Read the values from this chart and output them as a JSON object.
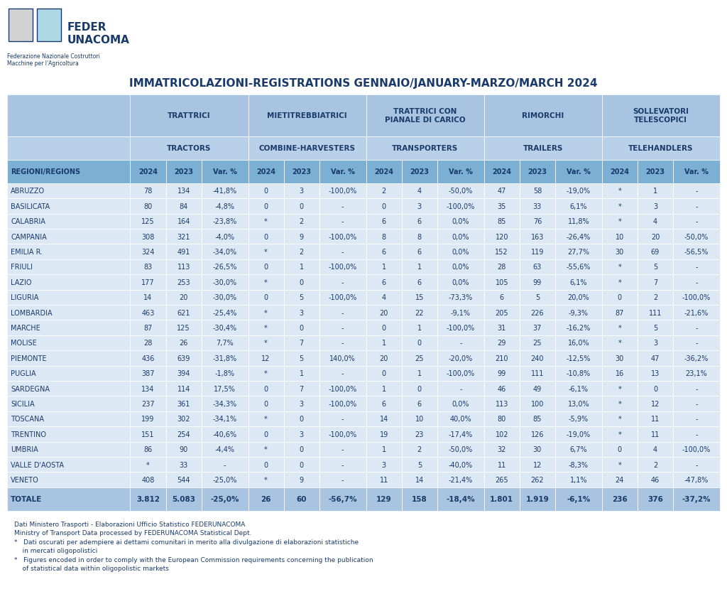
{
  "title": "IMMATRICOLAZIONI-REGISTRATIONS GENNAIO/JANUARY-MARZO/MARCH 2024",
  "header_row1": [
    "",
    "TRATTRICI",
    "",
    "",
    "MIETITREBBIATRICI",
    "",
    "",
    "TRATTRICI CON\nPIANALE DI CARICO",
    "",
    "",
    "RIMORCHI",
    "",
    "",
    "SOLLEVATORI\nTELESCOPICI",
    "",
    ""
  ],
  "header_row2": [
    "",
    "TRACTORS",
    "",
    "",
    "COMBINE-HARVESTERS",
    "",
    "",
    "TRANSPORTERS",
    "",
    "",
    "TRAILERS",
    "",
    "",
    "TELEHANDLERS",
    "",
    ""
  ],
  "col_headers": [
    "REGIONI/REGIONS",
    "2024",
    "2023",
    "Var. %",
    "2024",
    "2023",
    "Var. %",
    "2024",
    "2023",
    "Var. %",
    "2024",
    "2023",
    "Var. %",
    "2024",
    "2023",
    "Var. %"
  ],
  "rows": [
    [
      "ABRUZZO",
      "78",
      "134",
      "-41,8%",
      "0",
      "3",
      "-100,0%",
      "2",
      "4",
      "-50,0%",
      "47",
      "58",
      "-19,0%",
      "*",
      "1",
      "-"
    ],
    [
      "BASILICATA",
      "80",
      "84",
      "-4,8%",
      "0",
      "0",
      "-",
      "0",
      "3",
      "-100,0%",
      "35",
      "33",
      "6,1%",
      "*",
      "3",
      "-"
    ],
    [
      "CALABRIA",
      "125",
      "164",
      "-23,8%",
      "*",
      "2",
      "-",
      "6",
      "6",
      "0,0%",
      "85",
      "76",
      "11,8%",
      "*",
      "4",
      "-"
    ],
    [
      "CAMPANIA",
      "308",
      "321",
      "-4,0%",
      "0",
      "9",
      "-100,0%",
      "8",
      "8",
      "0,0%",
      "120",
      "163",
      "-26,4%",
      "10",
      "20",
      "-50,0%"
    ],
    [
      "EMILIA R.",
      "324",
      "491",
      "-34,0%",
      "*",
      "2",
      "-",
      "6",
      "6",
      "0,0%",
      "152",
      "119",
      "27,7%",
      "30",
      "69",
      "-56,5%"
    ],
    [
      "FRIULI",
      "83",
      "113",
      "-26,5%",
      "0",
      "1",
      "-100,0%",
      "1",
      "1",
      "0,0%",
      "28",
      "63",
      "-55,6%",
      "*",
      "5",
      "-"
    ],
    [
      "LAZIO",
      "177",
      "253",
      "-30,0%",
      "*",
      "0",
      "-",
      "6",
      "6",
      "0,0%",
      "105",
      "99",
      "6,1%",
      "*",
      "7",
      "-"
    ],
    [
      "LIGURIA",
      "14",
      "20",
      "-30,0%",
      "0",
      "5",
      "-100,0%",
      "4",
      "15",
      "-73,3%",
      "6",
      "5",
      "20,0%",
      "0",
      "2",
      "-100,0%"
    ],
    [
      "LOMBARDIA",
      "463",
      "621",
      "-25,4%",
      "*",
      "3",
      "-",
      "20",
      "22",
      "-9,1%",
      "205",
      "226",
      "-9,3%",
      "87",
      "111",
      "-21,6%"
    ],
    [
      "MARCHE",
      "87",
      "125",
      "-30,4%",
      "*",
      "0",
      "-",
      "0",
      "1",
      "-100,0%",
      "31",
      "37",
      "-16,2%",
      "*",
      "5",
      "-"
    ],
    [
      "MOLISE",
      "28",
      "26",
      "7,7%",
      "*",
      "7",
      "-",
      "1",
      "0",
      "-",
      "29",
      "25",
      "16,0%",
      "*",
      "3",
      "-"
    ],
    [
      "PIEMONTE",
      "436",
      "639",
      "-31,8%",
      "12",
      "5",
      "140,0%",
      "20",
      "25",
      "-20,0%",
      "210",
      "240",
      "-12,5%",
      "30",
      "47",
      "-36,2%"
    ],
    [
      "PUGLIA",
      "387",
      "394",
      "-1,8%",
      "*",
      "1",
      "-",
      "0",
      "1",
      "-100,0%",
      "99",
      "111",
      "-10,8%",
      "16",
      "13",
      "23,1%"
    ],
    [
      "SARDEGNA",
      "134",
      "114",
      "17,5%",
      "0",
      "7",
      "-100,0%",
      "1",
      "0",
      "-",
      "46",
      "49",
      "-6,1%",
      "*",
      "0",
      "-"
    ],
    [
      "SICILIA",
      "237",
      "361",
      "-34,3%",
      "0",
      "3",
      "-100,0%",
      "6",
      "6",
      "0,0%",
      "113",
      "100",
      "13,0%",
      "*",
      "12",
      "-"
    ],
    [
      "TOSCANA",
      "199",
      "302",
      "-34,1%",
      "*",
      "0",
      "-",
      "14",
      "10",
      "40,0%",
      "80",
      "85",
      "-5,9%",
      "*",
      "11",
      "-"
    ],
    [
      "TRENTINO",
      "151",
      "254",
      "-40,6%",
      "0",
      "3",
      "-100,0%",
      "19",
      "23",
      "-17,4%",
      "102",
      "126",
      "-19,0%",
      "*",
      "11",
      "-"
    ],
    [
      "UMBRIA",
      "86",
      "90",
      "-4,4%",
      "*",
      "0",
      "-",
      "1",
      "2",
      "-50,0%",
      "32",
      "30",
      "6,7%",
      "0",
      "4",
      "-100,0%"
    ],
    [
      "VALLE D'AOSTA",
      "*",
      "33",
      "-",
      "0",
      "0",
      "-",
      "3",
      "5",
      "-40,0%",
      "11",
      "12",
      "-8,3%",
      "*",
      "2",
      "-"
    ],
    [
      "VENETO",
      "408",
      "544",
      "-25,0%",
      "*",
      "9",
      "-",
      "11",
      "14",
      "-21,4%",
      "265",
      "262",
      "1,1%",
      "24",
      "46",
      "-47,8%"
    ]
  ],
  "totals": [
    "TOTALE",
    "3.812",
    "5.083",
    "-25,0%",
    "26",
    "60",
    "-56,7%",
    "129",
    "158",
    "-18,4%",
    "1.801",
    "1.919",
    "-6,1%",
    "236",
    "376",
    "-37,2%"
  ],
  "footer_lines": [
    "Dati Ministero Trasporti - Elaborazioni Ufficio Statistico FEDERUNACOMA",
    "Ministry of Transport Data processed by FEDERUNACOMA Statistical Dept.",
    "*   Dati oscurati per adempiere ai dettami comunitari in merito alla divulgazione di elaborazioni statistiche",
    "    in mercati oligopolistici",
    "*   Figures encoded in order to comply with the European Commission requirements concerning the publication",
    "    of statistical data within oligopolistic markets"
  ],
  "bg_color_header": "#a8c4e0",
  "bg_color_subheader": "#b8d0e8",
  "bg_color_colheader": "#7bafd4",
  "bg_color_rows": "#dce9f5",
  "bg_color_totals": "#a8c4e0",
  "bg_color_white": "#ffffff",
  "text_color_dark": "#1a3a6b",
  "text_color_header": "#1a3a6b"
}
